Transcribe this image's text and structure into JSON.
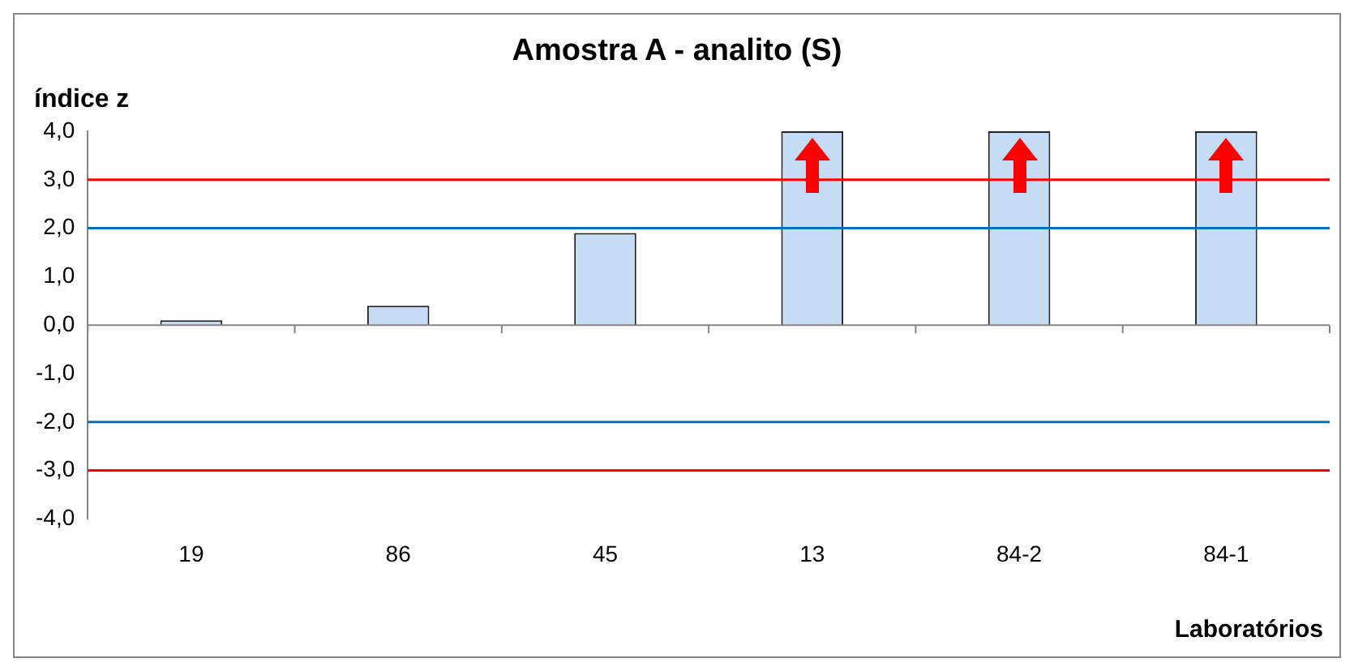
{
  "chart_data": {
    "type": "bar",
    "title": "Amostra A - analito (S)",
    "ylabel": "índice z",
    "xlabel": "Laboratórios",
    "categories": [
      "19",
      "86",
      "45",
      "13",
      "84-2",
      "84-1"
    ],
    "values": [
      0.1,
      0.4,
      1.9,
      4.0,
      4.0,
      4.0
    ],
    "color": "#c6dcf5",
    "ylim": [
      -4,
      4
    ],
    "yticks": [
      {
        "value": -4,
        "label": "-4,0"
      },
      {
        "value": -3,
        "label": "-3,0"
      },
      {
        "value": -2,
        "label": "-2,0"
      },
      {
        "value": -1,
        "label": "-1,0"
      },
      {
        "value": 0,
        "label": "0,0"
      },
      {
        "value": 1,
        "label": "1,0"
      },
      {
        "value": 2,
        "label": "2,0"
      },
      {
        "value": 3,
        "label": "3,0"
      },
      {
        "value": 4,
        "label": "4,0"
      }
    ],
    "ref_lines": [
      {
        "axis": "y",
        "value": 3,
        "color": "#ff0000"
      },
      {
        "axis": "y",
        "value": 2,
        "color": "#0070c0"
      },
      {
        "axis": "y",
        "value": -2,
        "color": "#0070c0"
      },
      {
        "axis": "y",
        "value": -3,
        "color": "#ff0000"
      }
    ],
    "grid": false,
    "legend": false
  }
}
